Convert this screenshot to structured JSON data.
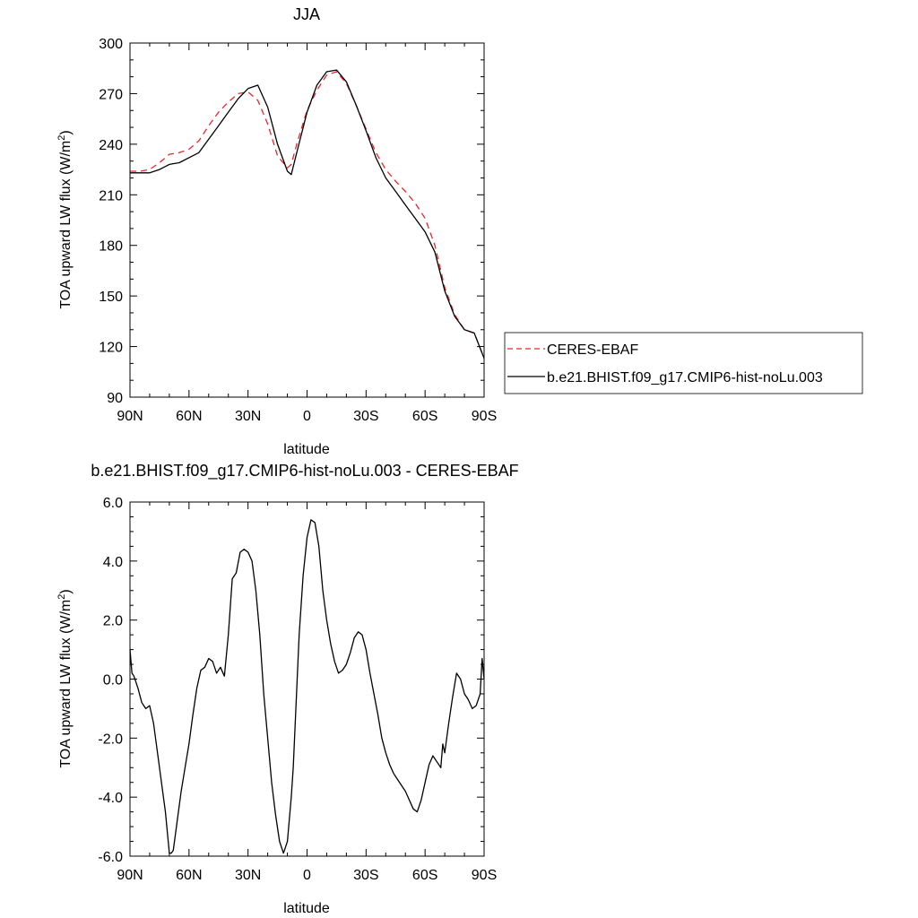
{
  "chart_data": [
    {
      "type": "line",
      "title": "JJA",
      "xlabel": "latitude",
      "ylabel": "TOA upward LW flux (W/m",
      "ylabel_sup": "2",
      "ylabel_close": ")",
      "xlim": [
        90,
        -90
      ],
      "ylim": [
        90,
        300
      ],
      "x_ticks": [
        90,
        60,
        30,
        0,
        -30,
        -60,
        -90
      ],
      "x_tick_labels": [
        "90N",
        "60N",
        "30N",
        "0",
        "30S",
        "60S",
        "90S"
      ],
      "y_ticks": [
        90,
        120,
        150,
        180,
        210,
        240,
        270,
        300
      ],
      "y_tick_labels": [
        "90",
        "120",
        "150",
        "180",
        "210",
        "240",
        "270",
        "300"
      ],
      "legend_position": "right",
      "series": [
        {
          "name": "CERES-EBAF",
          "color": "#e8262c",
          "dash": "dashed",
          "x": [
            90,
            85,
            80,
            75,
            70,
            65,
            60,
            55,
            50,
            45,
            40,
            35,
            30,
            25,
            20,
            15,
            10,
            8,
            5,
            0,
            -5,
            -10,
            -15,
            -20,
            -25,
            -30,
            -35,
            -40,
            -45,
            -50,
            -55,
            -60,
            -65,
            -70,
            -75,
            -80,
            -85,
            -90
          ],
          "values": [
            224,
            224,
            225,
            229,
            234,
            235,
            237,
            242,
            251,
            259,
            265,
            270,
            271,
            266,
            252,
            233,
            226,
            228,
            241,
            260,
            272,
            281,
            283,
            276,
            263,
            249,
            235,
            225,
            218,
            212,
            205,
            196,
            180,
            155,
            139,
            130,
            128,
            113
          ]
        },
        {
          "name": "b.e21.BHIST.f09_g17.CMIP6-hist-noLu.003",
          "color": "#000000",
          "dash": "solid",
          "x": [
            90,
            85,
            80,
            75,
            70,
            65,
            60,
            55,
            50,
            45,
            40,
            35,
            30,
            25,
            20,
            15,
            10,
            8,
            5,
            0,
            -5,
            -10,
            -15,
            -20,
            -25,
            -30,
            -35,
            -40,
            -45,
            -50,
            -55,
            -60,
            -65,
            -70,
            -75,
            -80,
            -85,
            -90
          ],
          "values": [
            223,
            223,
            223,
            225,
            228,
            229,
            232,
            235,
            243,
            251,
            259,
            267,
            273,
            275,
            262,
            240,
            224,
            222,
            236,
            259,
            275,
            283,
            284,
            277,
            263,
            248,
            232,
            220,
            212,
            204,
            196,
            188,
            176,
            153,
            138,
            130,
            128,
            113
          ]
        }
      ]
    },
    {
      "type": "line",
      "title": "b.e21.BHIST.f09_g17.CMIP6-hist-noLu.003 - CERES-EBAF",
      "xlabel": "latitude",
      "ylabel": "TOA upward LW flux (W/m",
      "ylabel_sup": "2",
      "ylabel_close": ")",
      "xlim": [
        90,
        -90
      ],
      "ylim": [
        -6,
        6
      ],
      "x_ticks": [
        90,
        60,
        30,
        0,
        -30,
        -60,
        -90
      ],
      "x_tick_labels": [
        "90N",
        "60N",
        "30N",
        "0",
        "30S",
        "60S",
        "90S"
      ],
      "y_ticks": [
        -6,
        -4,
        -2,
        0,
        2,
        4,
        6
      ],
      "y_tick_labels": [
        "-6.0",
        "-4.0",
        "-2.0",
        "0.0",
        "2.0",
        "4.0",
        "6.0"
      ],
      "series": [
        {
          "color": "#000000",
          "dash": "solid",
          "x": [
            90,
            89,
            88,
            86,
            84,
            82,
            80,
            78,
            76,
            74,
            72,
            70,
            69,
            68,
            66,
            64,
            62,
            60,
            58,
            56,
            54,
            52,
            50,
            48,
            46,
            44,
            42,
            40,
            38,
            36,
            34,
            32,
            30,
            28,
            26,
            24,
            22,
            20,
            18,
            16,
            14,
            12,
            10,
            8,
            7,
            6,
            4,
            2,
            0,
            -2,
            -4,
            -6,
            -8,
            -10,
            -12,
            -14,
            -16,
            -18,
            -20,
            -22,
            -24,
            -26,
            -28,
            -30,
            -32,
            -34,
            -36,
            -38,
            -40,
            -42,
            -44,
            -46,
            -48,
            -50,
            -52,
            -54,
            -56,
            -58,
            -60,
            -62,
            -64,
            -66,
            -68,
            -69,
            -70,
            -71,
            -72,
            -74,
            -76,
            -78,
            -80,
            -82,
            -84,
            -86,
            -88,
            -89,
            -90
          ],
          "values": [
            1.0,
            0.2,
            0.1,
            -0.3,
            -0.8,
            -1.0,
            -0.9,
            -1.5,
            -2.5,
            -3.5,
            -4.5,
            -5.9,
            -5.9,
            -5.8,
            -4.8,
            -3.8,
            -3.0,
            -2.2,
            -1.2,
            -0.3,
            0.3,
            0.4,
            0.7,
            0.6,
            0.2,
            0.4,
            0.1,
            1.5,
            3.4,
            3.6,
            4.3,
            4.4,
            4.3,
            4.0,
            3.0,
            1.5,
            -0.5,
            -2.0,
            -3.5,
            -4.6,
            -5.5,
            -5.9,
            -5.5,
            -4.0,
            -3.0,
            -1.5,
            1.5,
            3.5,
            4.8,
            5.4,
            5.3,
            4.5,
            3.0,
            2.0,
            1.2,
            0.6,
            0.2,
            0.3,
            0.5,
            0.9,
            1.4,
            1.6,
            1.5,
            1.0,
            0.2,
            -0.5,
            -1.2,
            -2.0,
            -2.5,
            -2.9,
            -3.2,
            -3.4,
            -3.6,
            -3.8,
            -4.1,
            -4.4,
            -4.5,
            -4.1,
            -3.5,
            -2.9,
            -2.6,
            -2.8,
            -3.0,
            -2.2,
            -2.5,
            -2.0,
            -1.5,
            -0.6,
            0.2,
            0.0,
            -0.5,
            -0.7,
            -1.0,
            -0.9,
            -0.5,
            0.7,
            0.0
          ]
        }
      ]
    }
  ]
}
